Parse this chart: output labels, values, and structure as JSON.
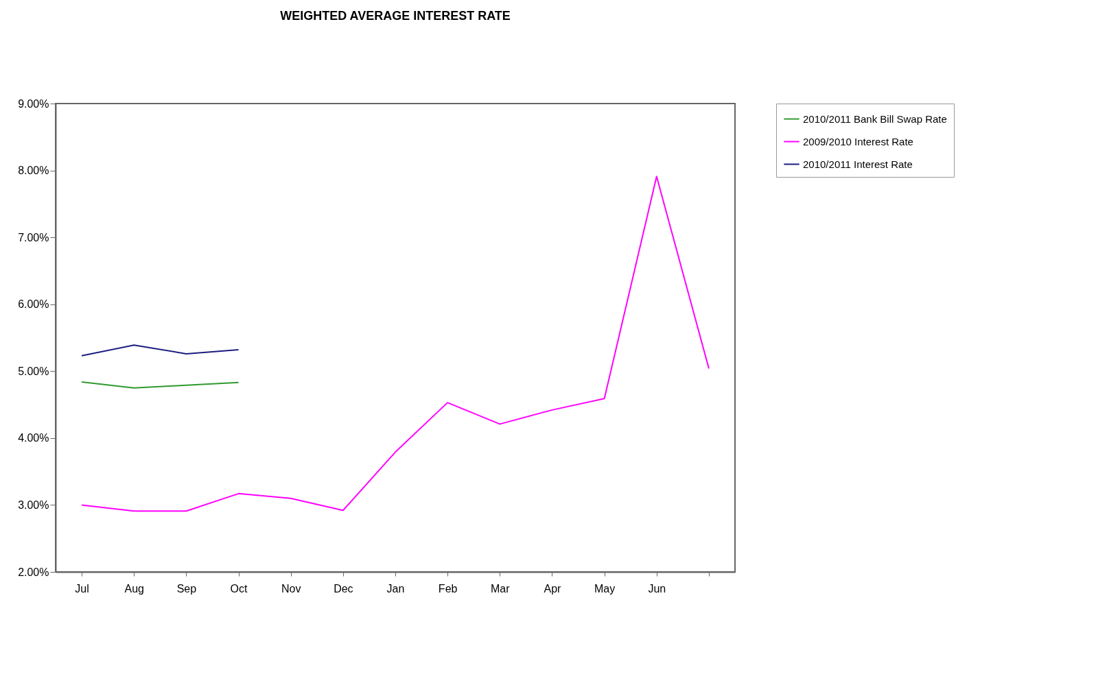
{
  "chart_data": {
    "type": "line",
    "title": "WEIGHTED AVERAGE INTEREST RATE",
    "categories": [
      "Jul",
      "Aug",
      "Sep",
      "Oct",
      "Nov",
      "Dec",
      "Jan",
      "Feb",
      "Mar",
      "Apr",
      "May",
      "Jun",
      null
    ],
    "series": [
      {
        "name": "2010/2011 Bank Bill Swap Rate",
        "color": "#2e9a2e",
        "values": [
          4.84,
          4.75,
          4.79,
          4.83,
          null,
          null,
          null,
          null,
          null,
          null,
          null,
          null,
          null
        ]
      },
      {
        "name": "2009/2010 Interest Rate",
        "color": "#ff00ff",
        "values": [
          3.0,
          2.91,
          2.91,
          3.17,
          3.1,
          2.92,
          3.79,
          4.53,
          4.21,
          4.42,
          4.59,
          7.91,
          5.04
        ]
      },
      {
        "name": "2010/2011 Interest Rate",
        "color": "#1c1c80",
        "values": [
          5.23,
          5.39,
          5.26,
          5.32,
          null,
          null,
          null,
          null,
          null,
          null,
          null,
          null,
          null
        ]
      }
    ],
    "ylim": [
      2,
      9
    ],
    "yticks": [
      {
        "value": 2,
        "label": "2.00%"
      },
      {
        "value": 3,
        "label": "3.00%"
      },
      {
        "value": 4,
        "label": "4.00%"
      },
      {
        "value": 5,
        "label": "5.00%"
      },
      {
        "value": 6,
        "label": "6.00%"
      },
      {
        "value": 7,
        "label": "7.00%"
      },
      {
        "value": 8,
        "label": "8.00%"
      },
      {
        "value": 9,
        "label": "9.00%"
      }
    ],
    "grid": false,
    "legend": "top right",
    "marker": "none",
    "line_style": "solid"
  }
}
